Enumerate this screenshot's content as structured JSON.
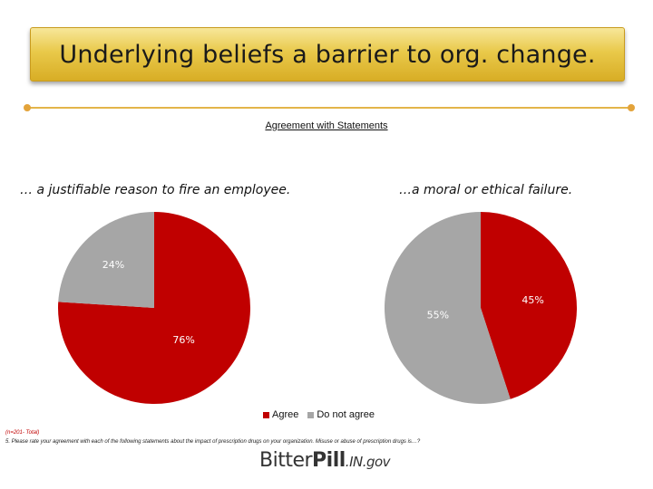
{
  "header": {
    "title": "Underlying beliefs a barrier to org. change."
  },
  "chart_heading": "Agreement with Statements",
  "colors": {
    "agree": "#c00000",
    "do_not_agree": "#a6a6a6",
    "banner": "#e9c94a",
    "rule": "#e3b54a"
  },
  "chart_data": [
    {
      "type": "pie",
      "title": "… a justifiable reason to fire an employee.",
      "slices": [
        {
          "name": "Agree",
          "value": 76,
          "label": "76%"
        },
        {
          "name": "Do not agree",
          "value": 24,
          "label": "24%"
        }
      ]
    },
    {
      "type": "pie",
      "title": "…a moral or ethical failure.",
      "slices": [
        {
          "name": "Agree",
          "value": 45,
          "label": "45%"
        },
        {
          "name": "Do not agree",
          "value": 55,
          "label": "55%"
        }
      ]
    }
  ],
  "legend": {
    "items": [
      {
        "name": "Agree"
      },
      {
        "name": "Do not agree"
      }
    ],
    "placement": "bottom-center"
  },
  "footnote": {
    "sample": "(n=201- Total)",
    "question": "5. Please rate your agreement with each of the following statements about the impact of prescription drugs on your organization.  Misuse or abuse of prescription drugs is…?"
  },
  "logo": {
    "word1": "Bitter",
    "word2": "Pill",
    "suffix": ".IN.gov"
  }
}
